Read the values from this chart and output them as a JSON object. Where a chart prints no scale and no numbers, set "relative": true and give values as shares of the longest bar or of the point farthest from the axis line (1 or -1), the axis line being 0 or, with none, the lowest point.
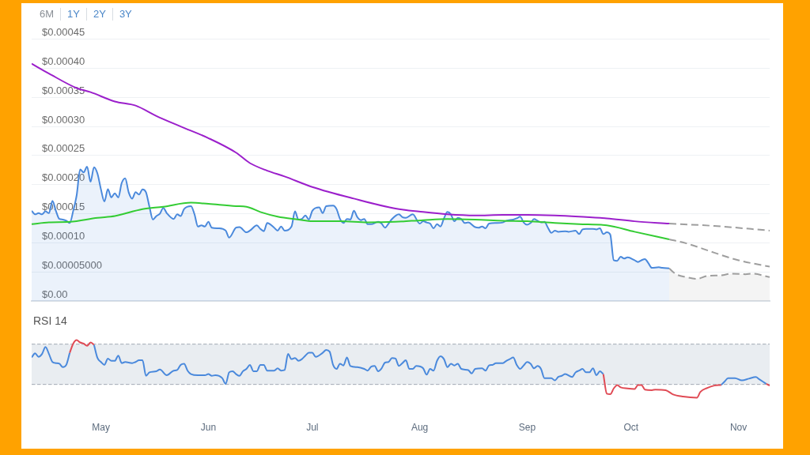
{
  "chart_data": [
    {
      "type": "line",
      "annotations": [
        "6M",
        "1Y",
        "2Y",
        "3Y"
      ],
      "xlim": [
        "--04-11",
        "--11-10"
      ],
      "ylim": [
        0,
        0.000512
      ],
      "yticks": [
        {
          "value": 0,
          "label": "$0.00"
        },
        {
          "value": 5e-05,
          "label": "$0.00005000"
        },
        {
          "value": 0.0001,
          "label": "$0.00010"
        },
        {
          "value": 0.00015,
          "label": "$0.00015"
        },
        {
          "value": 0.0002,
          "label": "$0.00020"
        },
        {
          "value": 0.00025,
          "label": "$0.00025"
        },
        {
          "value": 0.0003,
          "label": "$0.00030"
        },
        {
          "value": 0.00035,
          "label": "$0.00035"
        },
        {
          "value": 0.0004,
          "label": "$0.00040"
        },
        {
          "value": 0.00045,
          "label": "$0.00045"
        }
      ],
      "grid": "y",
      "tick_labels": "y",
      "series": [
        {
          "type": "area",
          "color": "#4a89dc",
          "x": [
            "--04-11",
            "--04-12",
            "--04-13",
            "--04-14",
            "--04-15",
            "--04-16",
            "--04-17",
            "--04-18",
            "--04-19",
            "--04-20",
            "--04-21",
            "--04-22",
            "--04-23",
            "--04-24",
            "--04-25",
            "--04-26",
            "--04-27",
            "--04-28",
            "--04-29",
            "--04-30",
            "--05-01",
            "--05-02",
            "--05-03",
            "--05-04",
            "--05-05",
            "--05-06",
            "--05-07",
            "--05-08",
            "--05-09",
            "--05-10",
            "--05-11",
            "--05-12",
            "--05-13",
            "--05-14",
            "--05-15",
            "--05-16",
            "--05-17",
            "--05-18",
            "--05-19",
            "--05-20",
            "--05-22",
            "--05-23",
            "--05-24",
            "--05-25",
            "--05-27",
            "--05-28",
            "--05-29",
            "--05-30",
            "--05-31",
            "--06-01",
            "--06-02",
            "--06-04",
            "--06-06",
            "--06-07",
            "--06-09",
            "--06-10",
            "--06-12",
            "--06-13",
            "--06-15",
            "--06-16",
            "--06-17",
            "--06-18",
            "--06-20",
            "--06-21",
            "--06-22",
            "--06-23",
            "--06-25",
            "--06-26",
            "--06-27",
            "--06-28",
            "--06-29",
            "--06-30",
            "--07-01",
            "--07-03",
            "--07-04",
            "--07-05",
            "--07-07",
            "--07-08",
            "--07-09",
            "--07-10",
            "--07-11",
            "--07-12",
            "--07-13",
            "--07-14",
            "--07-15",
            "--07-16",
            "--07-17",
            "--07-18",
            "--07-20",
            "--07-21",
            "--07-22",
            "--07-23",
            "--07-24",
            "--07-26",
            "--07-27",
            "--07-28",
            "--07-30",
            "--08-01",
            "--08-02",
            "--08-03",
            "--08-04",
            "--08-05",
            "--08-06",
            "--08-07",
            "--08-08",
            "--08-09",
            "--08-10",
            "--08-11",
            "--08-12",
            "--08-13",
            "--08-14",
            "--08-15",
            "--08-17",
            "--08-18",
            "--08-19",
            "--08-20",
            "--08-21",
            "--08-23",
            "--08-25",
            "--08-26",
            "--08-28",
            "--08-29",
            "--08-30",
            "--08-31",
            "--09-01",
            "--09-02",
            "--09-03",
            "--09-04",
            "--09-05",
            "--09-06",
            "--09-07",
            "--09-08",
            "--09-09",
            "--09-10",
            "--09-12",
            "--09-13",
            "--09-15",
            "--09-16",
            "--09-17",
            "--09-18",
            "--09-20",
            "--09-21",
            "--09-22",
            "--09-23",
            "--09-24",
            "--09-25",
            "--09-26",
            "--09-27",
            "--09-28",
            "--09-29",
            "--09-30",
            "--10-02",
            "--10-03",
            "--10-04",
            "--10-05",
            "--10-06",
            "--10-07",
            "--10-09",
            "--10-10",
            "--10-12"
          ],
          "values": [
            0.000155,
            0.000149,
            0.000151,
            0.000149,
            0.000154,
            0.000151,
            0.000172,
            0.000155,
            0.000141,
            0.00014,
            0.000138,
            0.000134,
            0.000155,
            0.000182,
            0.000226,
            0.000221,
            0.000231,
            0.000205,
            0.00023,
            0.000219,
            0.000192,
            0.000171,
            0.000192,
            0.000178,
            0.000185,
            0.000178,
            0.000203,
            0.000211,
            0.000187,
            0.000176,
            0.000187,
            0.000183,
            0.000192,
            0.000187,
            0.000162,
            0.00014,
            0.000146,
            0.00015,
            0.00016,
            0.000151,
            0.000141,
            0.000149,
            0.000146,
            0.000158,
            0.000163,
            0.000149,
            0.000128,
            0.00013,
            0.000128,
            0.000136,
            0.000126,
            0.000125,
            0.000121,
            0.000109,
            0.000126,
            0.000127,
            0.000118,
            0.000121,
            0.00013,
            0.000124,
            0.00012,
            0.000134,
            0.000126,
            0.000121,
            0.000128,
            0.000121,
            0.000128,
            0.000154,
            0.00014,
            0.000141,
            0.000147,
            0.00014,
            0.000155,
            0.000161,
            0.000151,
            0.000163,
            0.000164,
            0.000158,
            0.000141,
            0.000134,
            0.000141,
            0.00014,
            0.000155,
            0.000144,
            0.000139,
            0.000141,
            0.000132,
            0.000132,
            0.000136,
            0.000133,
            0.000126,
            0.000133,
            0.000141,
            0.000149,
            0.000144,
            0.000143,
            0.000149,
            0.000133,
            0.000137,
            0.000135,
            0.000133,
            0.000125,
            0.000132,
            0.000128,
            0.000142,
            0.000153,
            0.000149,
            0.000137,
            0.000143,
            0.000141,
            0.000134,
            0.000135,
            0.000127,
            0.000126,
            0.000128,
            0.000125,
            0.000133,
            0.000134,
            0.000135,
            0.000138,
            0.00014,
            0.000142,
            0.000145,
            0.000135,
            0.000131,
            0.000134,
            0.000141,
            0.000138,
            0.000135,
            0.000136,
            0.000126,
            0.000117,
            0.000121,
            0.000119,
            0.00012,
            0.000119,
            0.000121,
            0.000115,
            0.000123,
            0.000124,
            0.000124,
            0.000123,
            0.000125,
            0.000115,
            0.000118,
            0.000114,
            7e-05,
            6.9e-05,
            7.6e-05,
            7.3e-05,
            7.5e-05,
            7e-05,
            6.7e-05,
            7e-05,
            7.2e-05,
            6.5e-05,
            5.7e-05,
            5.8e-05,
            5.7e-05,
            5.6e-05
          ]
        },
        {
          "type": "line",
          "color": "#33cc33",
          "x": [
            "--04-11",
            "--04-16",
            "--04-22",
            "--04-30",
            "--05-05",
            "--05-13",
            "--05-19",
            "--05-27",
            "--06-01",
            "--06-09",
            "--06-12",
            "--06-16",
            "--06-21",
            "--06-27",
            "--07-01",
            "--07-09",
            "--07-17",
            "--07-25",
            "--08-02",
            "--08-09",
            "--08-17",
            "--08-25",
            "--09-01",
            "--09-09",
            "--09-16",
            "--09-24",
            "--10-02",
            "--10-12"
          ],
          "values": [
            0.000132,
            0.000135,
            0.000136,
            0.000143,
            0.000146,
            0.000158,
            0.000162,
            0.000169,
            0.000167,
            0.000163,
            0.000162,
            0.000153,
            0.000145,
            0.00014,
            0.000137,
            0.000137,
            0.000135,
            0.000136,
            0.000139,
            0.000141,
            0.00014,
            0.000138,
            0.000137,
            0.000134,
            0.000132,
            0.00013,
            0.000119,
            0.000106
          ]
        },
        {
          "type": "line",
          "color": "#9b1fcb",
          "x": [
            "--04-11",
            "--04-16",
            "--04-24",
            "--04-28",
            "--05-05",
            "--05-11",
            "--05-17",
            "--05-24",
            "--06-01",
            "--06-09",
            "--06-13",
            "--06-18",
            "--06-23",
            "--07-01",
            "--07-13",
            "--07-25",
            "--08-02",
            "--08-09",
            "--08-17",
            "--08-25",
            "--09-01",
            "--09-09",
            "--09-16",
            "--09-24",
            "--10-02",
            "--10-12"
          ],
          "values": [
            0.000408,
            0.000391,
            0.000366,
            0.000359,
            0.000343,
            0.000336,
            0.000318,
            0.0003,
            0.00028,
            0.000255,
            0.000237,
            0.000224,
            0.000214,
            0.000196,
            0.000176,
            0.000159,
            0.000153,
            0.000149,
            0.000147,
            0.000148,
            0.000148,
            0.000147,
            0.000145,
            0.000142,
            0.000137,
            0.000133
          ]
        },
        {
          "type": "area",
          "color": "#9e9e9e",
          "line_style": "dashed",
          "x": [
            "--10-12",
            "--10-14",
            "--10-17",
            "--10-20",
            "--10-23",
            "--10-27",
            "--10-30",
            "--11-03",
            "--11-05",
            "--11-10"
          ],
          "values": [
            5.6e-05,
            4.6e-05,
            4.1e-05,
            3.8e-05,
            4.3e-05,
            4.4e-05,
            4.7e-05,
            4.6e-05,
            4.7e-05,
            4.1e-05
          ]
        },
        {
          "type": "line",
          "color": "#9e9e9e",
          "line_style": "dashed",
          "x": [
            "--10-12",
            "--10-17",
            "--10-25",
            "--11-01",
            "--11-10"
          ],
          "values": [
            0.000106,
            9.9e-05,
            8.3e-05,
            7e-05,
            5.9e-05
          ]
        },
        {
          "type": "line",
          "color": "#9e9e9e",
          "line_style": "dashed",
          "x": [
            "--10-12",
            "--10-25",
            "--11-10"
          ],
          "values": [
            0.000133,
            0.000129,
            0.000121
          ]
        }
      ]
    },
    {
      "type": "line",
      "title": "RSI 14",
      "relative": true,
      "xlim": [
        "--04-11",
        "--11-10"
      ],
      "xticks": [
        {
          "value": "--05-01",
          "label": "May"
        },
        {
          "value": "--06-01",
          "label": "Jun"
        },
        {
          "value": "--07-01",
          "label": "Jul"
        },
        {
          "value": "--08-01",
          "label": "Aug"
        },
        {
          "value": "--09-01",
          "label": "Sep"
        },
        {
          "value": "--10-01",
          "label": "Oct"
        },
        {
          "value": "--11-01",
          "label": "Nov"
        }
      ],
      "tick_labels": "x",
      "bands": [
        {
          "axis": "y",
          "from": 0.23,
          "to": 0.93,
          "color": "#e9edf1"
        }
      ],
      "ref_lines": [
        {
          "axis": "y",
          "value": 0.93,
          "color": "#a0a9b3",
          "line_style": "dashed"
        },
        {
          "axis": "y",
          "value": 0.23,
          "color": "#a0a9b3",
          "line_style": "dashed"
        }
      ],
      "series": [
        {
          "color": "#4a89dc",
          "x": [
            "--04-11",
            "--04-12",
            "--04-13",
            "--04-14",
            "--04-15",
            "--04-16",
            "--04-17",
            "--04-18",
            "--04-19",
            "--04-20",
            "--04-21",
            "--04-22",
            "--04-23",
            "--04-29",
            "--04-30",
            "--05-01",
            "--05-02",
            "--05-03",
            "--05-04",
            "--05-05",
            "--05-06",
            "--05-07",
            "--05-08",
            "--05-10",
            "--05-11",
            "--05-12",
            "--05-13",
            "--05-14",
            "--05-15",
            "--05-17",
            "--05-18",
            "--05-20",
            "--05-22",
            "--05-23",
            "--05-24",
            "--05-25",
            "--05-26",
            "--05-27",
            "--05-29",
            "--05-31",
            "--06-01",
            "--06-02",
            "--06-03",
            "--06-05",
            "--06-06",
            "--06-07",
            "--06-08",
            "--06-09",
            "--06-10",
            "--06-11",
            "--06-12",
            "--06-13",
            "--06-14",
            "--06-15",
            "--06-16",
            "--06-17",
            "--06-18",
            "--06-20",
            "--06-21",
            "--06-22",
            "--06-23",
            "--06-24",
            "--06-25",
            "--06-26",
            "--06-27",
            "--06-28",
            "--06-29",
            "--06-30",
            "--07-01",
            "--07-02",
            "--07-04",
            "--07-05",
            "--07-06",
            "--07-07",
            "--07-08",
            "--07-09",
            "--07-10",
            "--07-11",
            "--07-12",
            "--07-14",
            "--07-16",
            "--07-17",
            "--07-18",
            "--07-19",
            "--07-20",
            "--07-21",
            "--07-22",
            "--07-23",
            "--07-24",
            "--07-25",
            "--07-26",
            "--07-27",
            "--07-28",
            "--07-29",
            "--07-30",
            "--07-31",
            "--08-02",
            "--08-03",
            "--08-04",
            "--08-05",
            "--08-06",
            "--08-07",
            "--08-08",
            "--08-09",
            "--08-10",
            "--08-11",
            "--08-12",
            "--08-13",
            "--08-15",
            "--08-16",
            "--08-17",
            "--08-19",
            "--08-20",
            "--08-21",
            "--08-22",
            "--08-23",
            "--08-25",
            "--08-26",
            "--08-27",
            "--08-28",
            "--08-29",
            "--08-30",
            "--08-31",
            "--09-01",
            "--09-02",
            "--09-03",
            "--09-04",
            "--09-05",
            "--09-06",
            "--09-08",
            "--09-09",
            "--09-10",
            "--09-11",
            "--09-12",
            "--09-14",
            "--09-15",
            "--09-16",
            "--09-17",
            "--09-18",
            "--09-19",
            "--09-20",
            "--09-21",
            "--09-22",
            "--09-23",
            "--09-24",
            "--10-27",
            "--10-28",
            "--10-29",
            "--10-31",
            "--11-02",
            "--11-04",
            "--11-06",
            "--11-07",
            "--11-09"
          ],
          "values": [
            0.7,
            0.77,
            0.71,
            0.76,
            0.88,
            0.76,
            0.62,
            0.6,
            0.59,
            0.53,
            0.57,
            0.78,
            null,
            0.92,
            0.69,
            0.62,
            0.57,
            0.68,
            0.64,
            0.64,
            0.73,
            0.6,
            0.62,
            0.6,
            0.62,
            0.65,
            0.65,
            0.38,
            0.44,
            0.46,
            0.49,
            0.39,
            0.47,
            0.48,
            0.57,
            0.59,
            0.47,
            0.41,
            0.39,
            0.39,
            0.41,
            0.38,
            0.39,
            0.34,
            0.24,
            0.44,
            0.46,
            0.41,
            0.38,
            0.46,
            0.5,
            0.57,
            0.46,
            0.46,
            0.57,
            0.57,
            0.47,
            0.47,
            0.51,
            0.47,
            0.48,
            0.76,
            0.67,
            0.69,
            0.64,
            0.67,
            0.73,
            0.78,
            0.78,
            0.71,
            0.78,
            0.83,
            0.8,
            0.57,
            0.5,
            0.59,
            0.56,
            0.7,
            0.55,
            0.53,
            0.5,
            0.47,
            0.54,
            0.55,
            0.46,
            0.51,
            0.61,
            0.62,
            0.69,
            0.68,
            0.55,
            0.6,
            0.65,
            0.5,
            0.5,
            0.55,
            0.51,
            0.4,
            0.5,
            0.47,
            0.64,
            0.72,
            0.67,
            0.53,
            0.59,
            0.56,
            0.59,
            0.5,
            0.48,
            0.42,
            0.5,
            0.51,
            0.47,
            0.56,
            0.57,
            0.6,
            0.6,
            0.64,
            0.67,
            0.7,
            0.57,
            0.5,
            0.56,
            0.62,
            0.59,
            0.51,
            0.55,
            0.5,
            0.34,
            0.34,
            0.3,
            0.36,
            0.38,
            0.41,
            0.36,
            0.44,
            0.47,
            0.5,
            0.44,
            0.44,
            0.51,
            0.39,
            0.46,
            0.41,
            null,
            0.22,
            0.28,
            0.34,
            0.34,
            0.3,
            0.33,
            0.36,
            0.32,
            0.24
          ]
        },
        {
          "color": "#e04b55",
          "x": [
            "--04-22",
            "--04-23",
            "--04-24",
            "--04-25",
            "--04-26",
            "--04-27",
            "--04-28",
            "--04-29",
            "--04-30",
            "--09-23",
            "--09-24",
            "--09-25",
            "--09-26",
            "--09-27",
            "--09-28",
            "--09-30",
            "--10-02",
            "--10-03",
            "--10-04",
            "--10-05",
            "--10-07",
            "--10-08",
            "--10-11",
            "--10-13",
            "--10-16",
            "--10-20",
            "--10-21",
            "--10-23",
            "--10-25",
            "--10-27",
            "--10-28",
            "--11-09",
            "--11-10"
          ],
          "values": [
            0.78,
            0.94,
            1.0,
            0.96,
            0.94,
            0.9,
            0.96,
            0.92,
            null,
            0.41,
            0.07,
            0.06,
            0.16,
            0.22,
            0.18,
            0.16,
            0.15,
            0.22,
            0.22,
            0.14,
            0.13,
            0.14,
            0.13,
            0.06,
            0.02,
            0.0,
            0.1,
            0.17,
            0.21,
            0.22,
            null,
            0.24,
            0.21
          ]
        }
      ]
    }
  ]
}
